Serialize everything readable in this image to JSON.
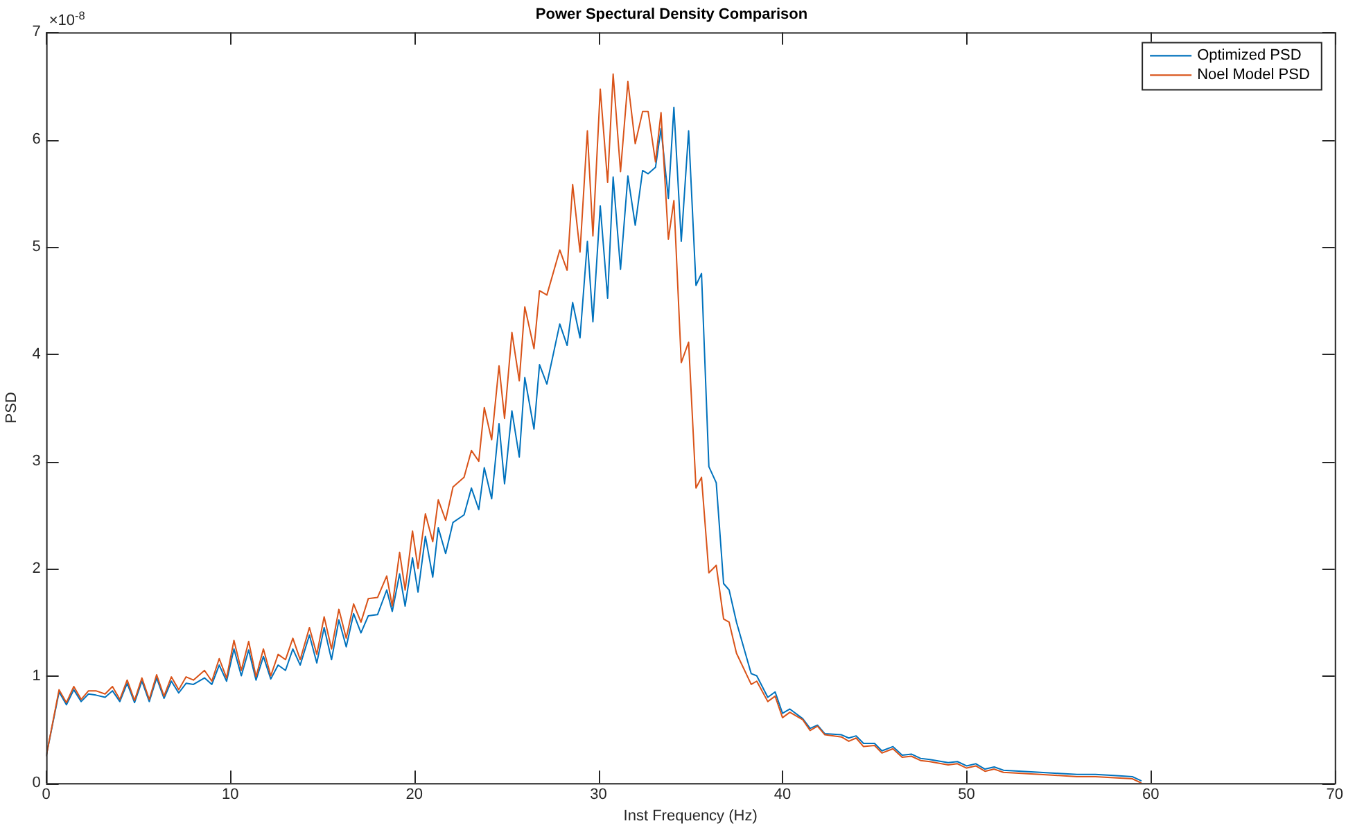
{
  "chart_data": {
    "type": "line",
    "title": "Power Spectural Density Comparison",
    "xlabel": "Inst Frequency (Hz)",
    "ylabel": "PSD",
    "annotations": [
      "×10$^{-8}$"
    ],
    "x": [
      0,
      0.7,
      1.1,
      1.5,
      1.9,
      2.3,
      2.7,
      3.2,
      3.6,
      4.0,
      4.4,
      4.8,
      5.2,
      5.6,
      6.0,
      6.4,
      6.8,
      7.2,
      7.6,
      8.0,
      8.6,
      9.0,
      9.4,
      9.8,
      10.2,
      10.6,
      11.0,
      11.4,
      11.8,
      12.2,
      12.6,
      13.0,
      13.4,
      13.8,
      14.3,
      14.7,
      15.1,
      15.5,
      15.9,
      16.3,
      16.7,
      17.1,
      17.5,
      18.0,
      18.5,
      18.8,
      19.2,
      19.5,
      19.9,
      20.2,
      20.6,
      21.0,
      21.3,
      21.7,
      22.1,
      22.7,
      23.1,
      23.5,
      23.8,
      24.2,
      24.6,
      24.9,
      25.3,
      25.7,
      26.0,
      26.5,
      26.8,
      27.2,
      27.9,
      28.3,
      28.6,
      29.0,
      29.4,
      29.7,
      30.1,
      30.5,
      30.8,
      31.2,
      31.6,
      32.0,
      32.4,
      32.7,
      33.1,
      33.4,
      33.8,
      34.1,
      34.5,
      34.9,
      35.3,
      35.6,
      36.0,
      36.4,
      36.8,
      37.1,
      37.5,
      38.3,
      38.6,
      39.2,
      39.6,
      40.0,
      40.4,
      41.1,
      41.5,
      41.9,
      42.3,
      43.2,
      43.6,
      44.0,
      44.4,
      45.0,
      45.4,
      46.0,
      46.5,
      47.0,
      47.5,
      48.0,
      49.0,
      49.5,
      50.0,
      50.5,
      51.0,
      51.5,
      52.0,
      53.0,
      54.0,
      55.0,
      56.0,
      57.0,
      58.0,
      59.0,
      59.5
    ],
    "series": [
      {
        "name": "Optimized PSD",
        "color": "#0072bd",
        "values": [
          0.25,
          0.85,
          0.73,
          0.87,
          0.76,
          0.83,
          0.82,
          0.8,
          0.86,
          0.76,
          0.93,
          0.75,
          0.95,
          0.76,
          0.98,
          0.79,
          0.95,
          0.84,
          0.93,
          0.92,
          0.98,
          0.92,
          1.1,
          0.95,
          1.25,
          1.0,
          1.24,
          0.96,
          1.18,
          0.97,
          1.1,
          1.05,
          1.25,
          1.1,
          1.38,
          1.12,
          1.45,
          1.15,
          1.52,
          1.27,
          1.58,
          1.4,
          1.56,
          1.57,
          1.8,
          1.6,
          1.95,
          1.65,
          2.1,
          1.78,
          2.3,
          1.92,
          2.38,
          2.14,
          2.43,
          2.5,
          2.75,
          2.55,
          2.94,
          2.65,
          3.35,
          2.79,
          3.47,
          3.04,
          3.78,
          3.3,
          3.9,
          3.72,
          4.28,
          4.08,
          4.48,
          4.15,
          5.05,
          4.3,
          5.38,
          4.52,
          5.65,
          4.79,
          5.66,
          5.2,
          5.71,
          5.68,
          5.74,
          6.1,
          5.45,
          6.3,
          5.05,
          6.08,
          4.64,
          4.75,
          2.95,
          2.8,
          1.86,
          1.8,
          1.5,
          1.02,
          1.0,
          0.8,
          0.85,
          0.65,
          0.69,
          0.6,
          0.51,
          0.54,
          0.46,
          0.45,
          0.42,
          0.44,
          0.37,
          0.37,
          0.3,
          0.34,
          0.26,
          0.27,
          0.23,
          0.22,
          0.19,
          0.2,
          0.16,
          0.18,
          0.13,
          0.15,
          0.12,
          0.11,
          0.1,
          0.09,
          0.08,
          0.08,
          0.07,
          0.06,
          0.02
        ]
      },
      {
        "name": "Noel Model PSD",
        "color": "#d95319",
        "values": [
          0.25,
          0.87,
          0.75,
          0.9,
          0.78,
          0.86,
          0.86,
          0.83,
          0.9,
          0.78,
          0.96,
          0.77,
          0.98,
          0.78,
          1.01,
          0.81,
          0.99,
          0.87,
          0.99,
          0.96,
          1.05,
          0.95,
          1.16,
          0.98,
          1.33,
          1.05,
          1.32,
          0.99,
          1.25,
          1.0,
          1.2,
          1.15,
          1.35,
          1.15,
          1.45,
          1.2,
          1.55,
          1.25,
          1.62,
          1.35,
          1.67,
          1.5,
          1.72,
          1.73,
          1.93,
          1.65,
          2.15,
          1.8,
          2.35,
          2.0,
          2.51,
          2.25,
          2.64,
          2.45,
          2.76,
          2.85,
          3.1,
          3.0,
          3.5,
          3.2,
          3.89,
          3.4,
          4.2,
          3.75,
          4.44,
          4.05,
          4.59,
          4.55,
          4.97,
          4.78,
          5.58,
          4.95,
          6.08,
          5.1,
          6.47,
          5.6,
          6.61,
          5.7,
          6.54,
          5.96,
          6.26,
          6.26,
          5.79,
          6.25,
          5.07,
          5.43,
          3.92,
          4.11,
          2.75,
          2.85,
          1.96,
          2.03,
          1.53,
          1.5,
          1.21,
          0.92,
          0.95,
          0.76,
          0.81,
          0.61,
          0.66,
          0.59,
          0.49,
          0.53,
          0.45,
          0.43,
          0.39,
          0.42,
          0.34,
          0.35,
          0.28,
          0.32,
          0.24,
          0.25,
          0.21,
          0.2,
          0.17,
          0.18,
          0.14,
          0.16,
          0.11,
          0.13,
          0.1,
          0.09,
          0.08,
          0.07,
          0.06,
          0.06,
          0.05,
          0.04,
          0.0
        ]
      }
    ],
    "xlim": [
      0,
      70
    ],
    "xticks": [
      0,
      10,
      20,
      30,
      40,
      50,
      60,
      70
    ],
    "ylim": [
      0,
      7
    ],
    "yticks": [
      0,
      1,
      2,
      3,
      4,
      5,
      6,
      7
    ],
    "grid": false,
    "legend": "top right",
    "marker": "none",
    "line_style": "solid"
  }
}
